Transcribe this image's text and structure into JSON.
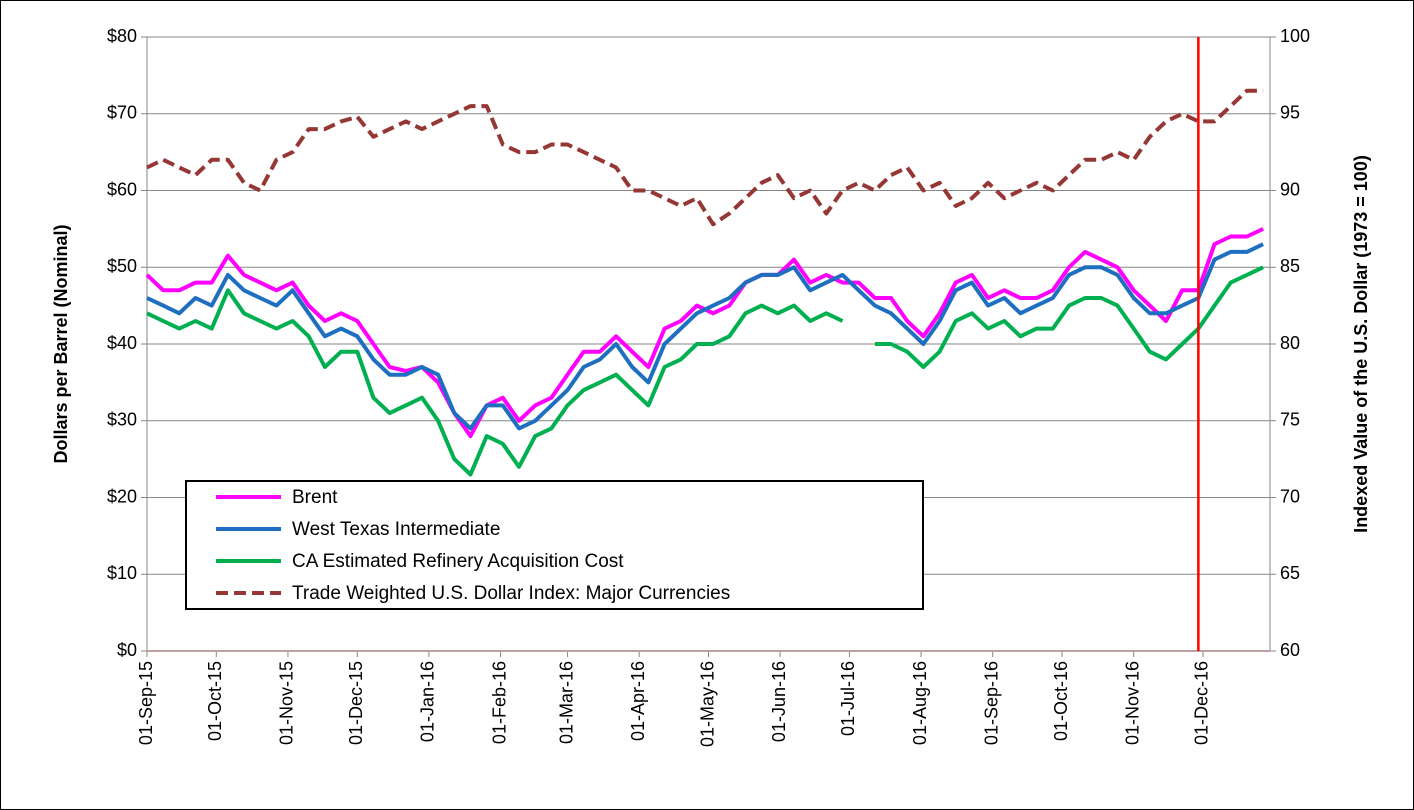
{
  "chart_data": {
    "type": "line",
    "y_label": "Dollars per Barrel (Nominal)",
    "y2_label": "Indexed Value of the U.S. Dollar (1973 = 100)",
    "x": [
      "2015-09-01",
      "2015-09-08",
      "2015-09-15",
      "2015-09-22",
      "2015-09-29",
      "2015-10-06",
      "2015-10-13",
      "2015-10-20",
      "2015-10-27",
      "2015-11-03",
      "2015-11-10",
      "2015-11-17",
      "2015-11-24",
      "2015-12-01",
      "2015-12-08",
      "2015-12-15",
      "2015-12-22",
      "2015-12-29",
      "2016-01-05",
      "2016-01-12",
      "2016-01-19",
      "2016-01-26",
      "2016-02-02",
      "2016-02-09",
      "2016-02-16",
      "2016-02-23",
      "2016-03-01",
      "2016-03-08",
      "2016-03-15",
      "2016-03-22",
      "2016-03-29",
      "2016-04-05",
      "2016-04-12",
      "2016-04-19",
      "2016-04-26",
      "2016-05-03",
      "2016-05-10",
      "2016-05-17",
      "2016-05-24",
      "2016-05-31",
      "2016-06-07",
      "2016-06-14",
      "2016-06-21",
      "2016-06-28",
      "2016-07-05",
      "2016-07-12",
      "2016-07-19",
      "2016-07-26",
      "2016-08-02",
      "2016-08-09",
      "2016-08-16",
      "2016-08-23",
      "2016-08-30",
      "2016-09-06",
      "2016-09-13",
      "2016-09-20",
      "2016-09-27",
      "2016-10-04",
      "2016-10-11",
      "2016-10-18",
      "2016-10-25",
      "2016-11-01",
      "2016-11-08",
      "2016-11-15",
      "2016-11-22",
      "2016-11-29",
      "2016-12-06",
      "2016-12-13",
      "2016-12-20",
      "2016-12-27"
    ],
    "series": [
      {
        "name": "Brent",
        "color": "#ff00ff",
        "dashed": false,
        "values": [
          49,
          47,
          47,
          48,
          48,
          51.5,
          49,
          48,
          47,
          48,
          45,
          43,
          44,
          43,
          40,
          37,
          36.5,
          37,
          35,
          31,
          28,
          32,
          33,
          30,
          32,
          33,
          36,
          39,
          39,
          41,
          39,
          37,
          42,
          43,
          45,
          44,
          45,
          48,
          49,
          49,
          51,
          48,
          49,
          48,
          48,
          46,
          46,
          43,
          41,
          44,
          48,
          49,
          46,
          47,
          46,
          46,
          47,
          50,
          52,
          51,
          50,
          47,
          45,
          43,
          47,
          47,
          53,
          54,
          54,
          55
        ]
      },
      {
        "name": "West Texas Intermediate",
        "color": "#1f6fc0",
        "dashed": false,
        "values": [
          46,
          45,
          44,
          46,
          45,
          49,
          47,
          46,
          45,
          47,
          44,
          41,
          42,
          41,
          38,
          36,
          36,
          37,
          36,
          31,
          29,
          32,
          32,
          29,
          30,
          32,
          34,
          37,
          38,
          40,
          37,
          35,
          40,
          42,
          44,
          45,
          46,
          48,
          49,
          49,
          50,
          47,
          48,
          49,
          47,
          45,
          44,
          42,
          40,
          43,
          47,
          48,
          45,
          46,
          44,
          45,
          46,
          49,
          50,
          50,
          49,
          46,
          44,
          44,
          45,
          46,
          51,
          52,
          52,
          53
        ]
      },
      {
        "name": "CA Estimated Refinery Acquisition Cost",
        "color": "#00b050",
        "dashed": false,
        "values": [
          44,
          43,
          42,
          43,
          42,
          47,
          44,
          43,
          42,
          43,
          41,
          37,
          39,
          39,
          33,
          31,
          32,
          33,
          30,
          25,
          23,
          28,
          27,
          24,
          28,
          29,
          32,
          34,
          35,
          36,
          34,
          32,
          37,
          38,
          40,
          40,
          41,
          44,
          45,
          44,
          45,
          43,
          44,
          43,
          null,
          40,
          40,
          39,
          37,
          39,
          43,
          44,
          42,
          43,
          41,
          42,
          42,
          45,
          46,
          46,
          45,
          42,
          39,
          38,
          40,
          42,
          45,
          48,
          49,
          50
        ]
      },
      {
        "name": "Trade Weighted U.S. Dollar Index: Major Currencies",
        "color": "#953735",
        "dashed": true,
        "axis": "y2",
        "values": [
          91.5,
          92,
          91.5,
          91,
          92,
          92,
          90.5,
          90,
          92,
          92.5,
          94,
          94,
          94.5,
          94.8,
          93.5,
          94,
          94.5,
          94,
          94.5,
          95,
          95.5,
          95.5,
          93,
          92.5,
          92.5,
          93,
          93,
          92.5,
          92,
          91.5,
          90,
          90,
          89.5,
          89,
          89.5,
          87.8,
          88.5,
          89.5,
          90.5,
          91,
          89.5,
          90,
          88.5,
          90,
          90.5,
          90,
          91,
          91.5,
          90,
          90.5,
          89,
          89.5,
          90.5,
          89.5,
          90,
          90.5,
          90,
          91,
          92,
          92,
          92.5,
          92,
          93.5,
          94.5,
          95,
          94.5,
          94.5,
          95.5,
          96.5,
          96.5
        ]
      }
    ],
    "xlim": [
      "2015-09-01",
      "2016-12-30"
    ],
    "xticks": [
      {
        "value": "2015-09-01",
        "label": "01-Sep-15"
      },
      {
        "value": "2015-10-01",
        "label": "01-Oct-15"
      },
      {
        "value": "2015-11-01",
        "label": "01-Nov-15"
      },
      {
        "value": "2015-12-01",
        "label": "01-Dec-15"
      },
      {
        "value": "2016-01-01",
        "label": "01-Jan-16"
      },
      {
        "value": "2016-02-01",
        "label": "01-Feb-16"
      },
      {
        "value": "2016-03-01",
        "label": "01-Mar-16"
      },
      {
        "value": "2016-04-01",
        "label": "01-Apr-16"
      },
      {
        "value": "2016-05-01",
        "label": "01-May-16"
      },
      {
        "value": "2016-06-01",
        "label": "01-Jun-16"
      },
      {
        "value": "2016-07-01",
        "label": "01-Jul-16"
      },
      {
        "value": "2016-08-01",
        "label": "01-Aug-16"
      },
      {
        "value": "2016-09-01",
        "label": "01-Sep-16"
      },
      {
        "value": "2016-10-01",
        "label": "01-Oct-16"
      },
      {
        "value": "2016-11-01",
        "label": "01-Nov-16"
      },
      {
        "value": "2016-12-01",
        "label": "01-Dec-16"
      }
    ],
    "ylim": [
      0,
      80
    ],
    "yticks": [
      {
        "value": 0,
        "label": "$0"
      },
      {
        "value": 10,
        "label": "$10"
      },
      {
        "value": 20,
        "label": "$20"
      },
      {
        "value": 30,
        "label": "$30"
      },
      {
        "value": 40,
        "label": "$40"
      },
      {
        "value": 50,
        "label": "$50"
      },
      {
        "value": 60,
        "label": "$60"
      },
      {
        "value": 70,
        "label": "$70"
      },
      {
        "value": 80,
        "label": "$80"
      }
    ],
    "y2lim": [
      60,
      100
    ],
    "y2ticks": [
      60,
      65,
      70,
      75,
      80,
      85,
      90,
      95,
      100
    ],
    "grid": true,
    "legend_position": "lower left",
    "vline": {
      "x": "2016-11-29",
      "color": "#ff0000"
    }
  }
}
